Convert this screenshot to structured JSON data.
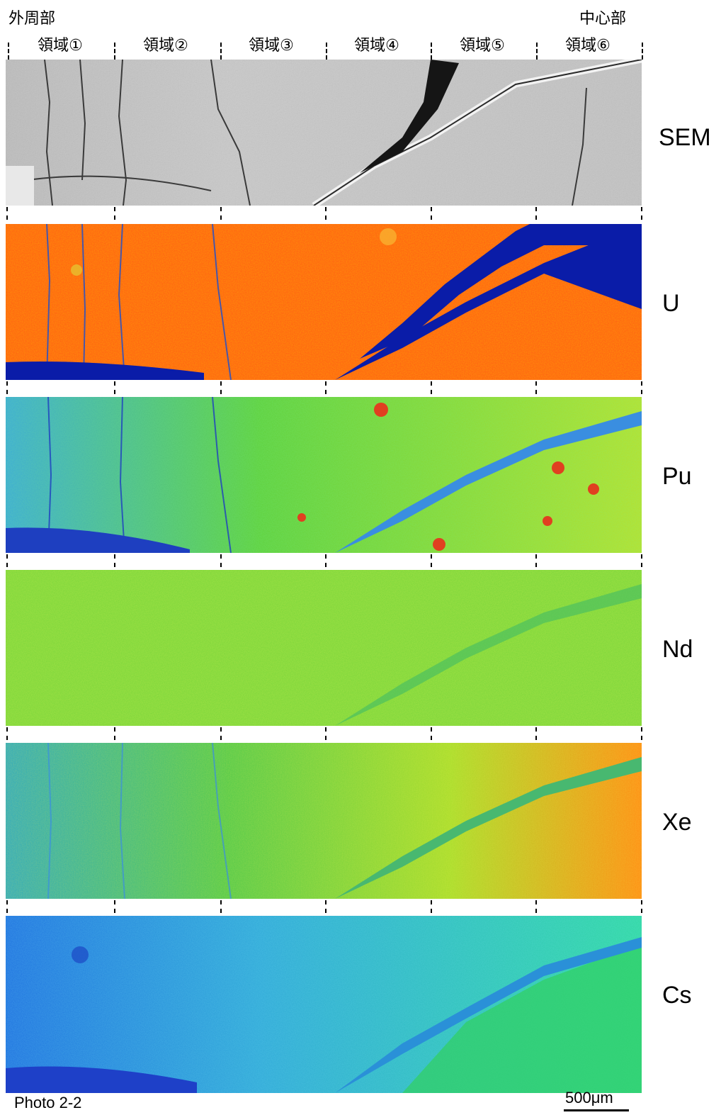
{
  "header": {
    "left_title": "外周部",
    "right_title": "中心部",
    "regions": [
      "領域①",
      "領域②",
      "領域③",
      "領域④",
      "領域⑤",
      "領域⑥"
    ]
  },
  "panels": [
    {
      "label": "SEM",
      "color_base": "#c4c4c4"
    },
    {
      "label": "U",
      "color_base": "#ff5a12"
    },
    {
      "label": "Pu",
      "color_base": "#5fcf3a"
    },
    {
      "label": "Nd",
      "color_base": "#79d63a"
    },
    {
      "label": "Xe",
      "color_base": "#6ccf4a"
    },
    {
      "label": "Cs",
      "color_base": "#2fa8d8"
    }
  ],
  "footer": {
    "photo_label": "Photo 2-2",
    "scale_label": "500μm"
  }
}
